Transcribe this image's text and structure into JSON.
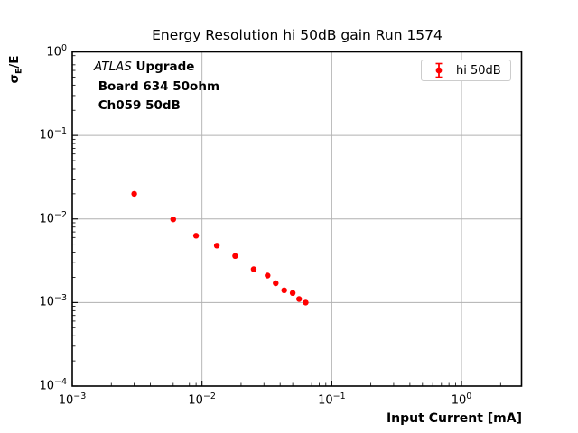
{
  "chart_data": {
    "type": "scatter",
    "title": "Energy Resolution hi 50dB gain Run 1574",
    "xlabel": "Input Current [mA]",
    "ylabel": "σE/E",
    "ylabel_parts": {
      "base": "σ",
      "subscript": "E",
      "suffix": "/E"
    },
    "xscale": "log",
    "yscale": "log",
    "xlim": [
      0.001,
      2.9
    ],
    "ylim": [
      0.0001,
      1.0
    ],
    "x_tick_exponents": [
      -3,
      -2,
      -1,
      0
    ],
    "y_tick_exponents": [
      0,
      -1,
      -2,
      -3,
      -4
    ],
    "grid": true,
    "legend_position": "upper-right",
    "series": [
      {
        "name": "hi 50dB",
        "marker": "circle-with-errorbar",
        "color": "#ff0000",
        "x": [
          0.003,
          0.006,
          0.009,
          0.013,
          0.018,
          0.025,
          0.032,
          0.037,
          0.043,
          0.05,
          0.056,
          0.063
        ],
        "y": [
          0.02,
          0.0099,
          0.0063,
          0.0048,
          0.0036,
          0.0025,
          0.0021,
          0.0017,
          0.0014,
          0.0013,
          0.0011,
          0.001
        ]
      }
    ]
  },
  "annotation": {
    "line1_italic": "ATLAS",
    "line1_bold": " Upgrade",
    "line2": " Board 634 50ohm",
    "line3": " Ch059 50dB"
  },
  "legend": {
    "label": "hi 50dB"
  },
  "colors": {
    "marker": "#ff0000",
    "grid": "#b0b0b0",
    "spine": "#000000",
    "legend_border": "#cccccc",
    "background": "#ffffff",
    "text": "#000000"
  }
}
